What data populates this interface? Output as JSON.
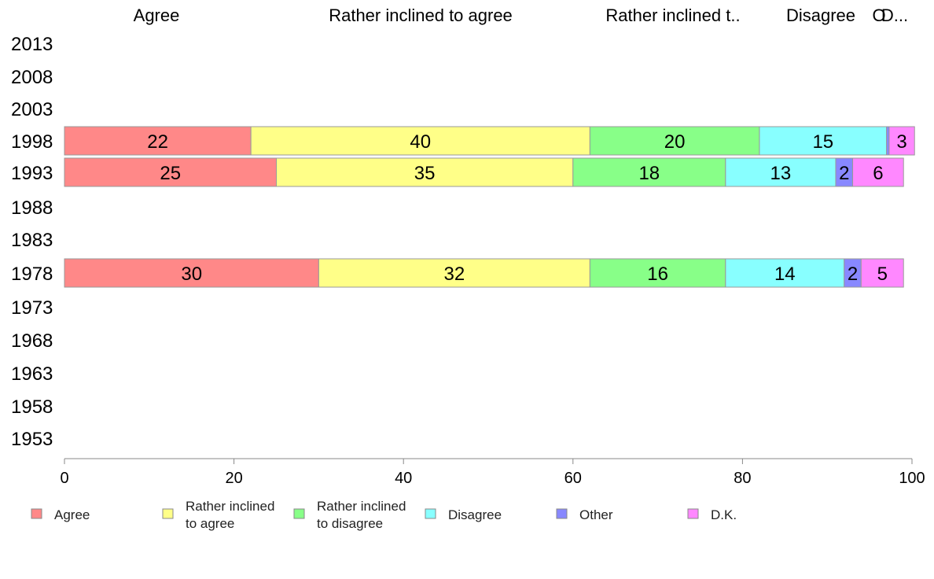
{
  "chart_data": {
    "type": "bar",
    "orientation": "horizontal",
    "stacked": true,
    "categories": [
      "2013",
      "2008",
      "2003",
      "1998",
      "1993",
      "1988",
      "1983",
      "1978",
      "1973",
      "1968",
      "1963",
      "1958",
      "1953"
    ],
    "series": [
      {
        "name": "Agree",
        "color": "#ff8888",
        "values": [
          null,
          null,
          null,
          22,
          25,
          null,
          null,
          30,
          null,
          null,
          null,
          null,
          null
        ]
      },
      {
        "name": "Rather inclined to agree",
        "color": "#ffff88",
        "values": [
          null,
          null,
          null,
          40,
          35,
          null,
          null,
          32,
          null,
          null,
          null,
          null,
          null
        ]
      },
      {
        "name": "Rather inclined to disagree",
        "color": "#88ff88",
        "values": [
          null,
          null,
          null,
          20,
          18,
          null,
          null,
          16,
          null,
          null,
          null,
          null,
          null
        ]
      },
      {
        "name": "Disagree",
        "color": "#88ffff",
        "values": [
          null,
          null,
          null,
          15,
          13,
          null,
          null,
          14,
          null,
          null,
          null,
          null,
          null
        ]
      },
      {
        "name": "Other",
        "color": "#8888ff",
        "values": [
          null,
          null,
          null,
          0.3,
          2,
          null,
          null,
          2,
          null,
          null,
          null,
          null,
          null
        ]
      },
      {
        "name": "D.K.",
        "color": "#ff88ff",
        "values": [
          null,
          null,
          null,
          3,
          6,
          null,
          null,
          5,
          null,
          null,
          null,
          null,
          null
        ]
      }
    ],
    "top_headers": [
      "Agree",
      "Rather inclined to agree",
      "Rather inclined t..",
      "Disagree",
      "O",
      "D..."
    ],
    "legend": [
      {
        "lines": [
          "Agree"
        ]
      },
      {
        "lines": [
          "Rather inclined",
          "to agree"
        ]
      },
      {
        "lines": [
          "Rather inclined",
          "to disagree"
        ]
      },
      {
        "lines": [
          "Disagree"
        ]
      },
      {
        "lines": [
          "Other"
        ]
      },
      {
        "lines": [
          "D.K."
        ]
      }
    ],
    "xlim": [
      0,
      100
    ],
    "xticks": [
      0,
      20,
      40,
      60,
      80,
      100
    ],
    "legend_position": "bottom",
    "grid": false
  }
}
